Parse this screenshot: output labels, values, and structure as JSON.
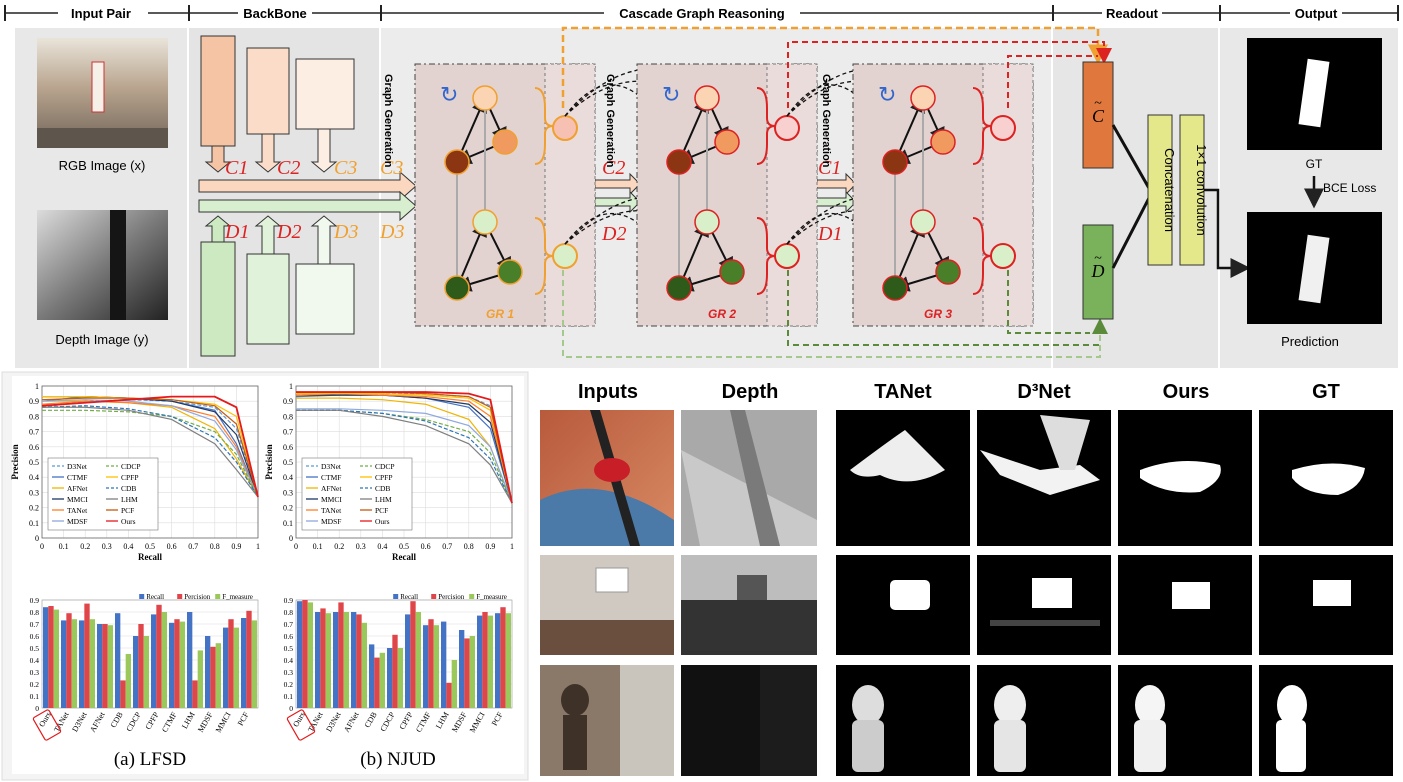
{
  "stages": [
    "Input Pair",
    "BackBone",
    "Cascade Graph Reasoning",
    "Readout",
    "Output"
  ],
  "inputs": {
    "rgb_caption": "RGB Image (x)",
    "depth_caption": "Depth Image (y)"
  },
  "backbone": {
    "c_labels": [
      "C1",
      "C2",
      "C3"
    ],
    "d_labels": [
      "D1",
      "D2",
      "D3"
    ]
  },
  "graph": {
    "generation_label": "Graph Generation",
    "gr_labels": [
      "GR 1",
      "GR 2",
      "GR 3"
    ],
    "flow_labels_top": [
      "C3",
      "C2",
      "C1"
    ],
    "flow_labels_bottom": [
      "D3",
      "D2",
      "D1"
    ]
  },
  "readout": {
    "c_tilde": "C",
    "d_tilde": "D",
    "concat": "Concatenation",
    "conv": "1×1 convolution"
  },
  "output": {
    "gt": "GT",
    "loss": "BCE Loss",
    "prediction": "Prediction"
  },
  "charts": {
    "pr_ticks_x": [
      "0",
      "0.1",
      "0.2",
      "0.3",
      "0.4",
      "0.5",
      "0.6",
      "0.7",
      "0.8",
      "0.9",
      "1"
    ],
    "pr_ticks_y": [
      "0",
      "0.1",
      "0.2",
      "0.3",
      "0.4",
      "0.5",
      "0.6",
      "0.7",
      "0.8",
      "0.9",
      "1"
    ],
    "bar_ticks_y": [
      "0",
      "0.1",
      "0.2",
      "0.3",
      "0.4",
      "0.5",
      "0.6",
      "0.7",
      "0.8",
      "0.9"
    ],
    "xlabel": "Recall",
    "ylabel": "Precision",
    "legend_left": [
      "D3Net",
      "CTMF",
      "AFNet",
      "MMCI",
      "TANet",
      "MDSF"
    ],
    "legend_right": [
      "CDCP",
      "CPFP",
      "CDB",
      "LHM",
      "PCF",
      "Ours"
    ],
    "bar_legend": [
      "Recall",
      "Percision",
      "F_measure"
    ],
    "captions": [
      "(a)  LFSD",
      "(b)  NJUD"
    ]
  },
  "comparison": {
    "headers": [
      "Inputs",
      "Depth",
      "TANet",
      "D³Net",
      "Ours",
      "GT"
    ]
  },
  "chart_data": [
    {
      "type": "line",
      "xlabel": "Recall",
      "ylabel": "Precision",
      "xlim": [
        0,
        1
      ],
      "ylim": [
        0,
        1
      ],
      "series": [
        {
          "name": "D3Net",
          "x": [
            0,
            0.2,
            0.4,
            0.6,
            0.8,
            0.9,
            1
          ],
          "y": [
            0.86,
            0.9,
            0.91,
            0.9,
            0.86,
            0.72,
            0.27
          ]
        },
        {
          "name": "CTMF",
          "x": [
            0,
            0.2,
            0.4,
            0.6,
            0.8,
            0.9,
            1
          ],
          "y": [
            0.9,
            0.93,
            0.92,
            0.9,
            0.84,
            0.62,
            0.27
          ]
        },
        {
          "name": "AFNet",
          "x": [
            0,
            0.2,
            0.4,
            0.6,
            0.8,
            0.9,
            1
          ],
          "y": [
            0.9,
            0.9,
            0.89,
            0.86,
            0.72,
            0.52,
            0.27
          ]
        },
        {
          "name": "MMCI",
          "x": [
            0,
            0.2,
            0.4,
            0.6,
            0.8,
            0.9,
            1
          ],
          "y": [
            0.93,
            0.93,
            0.92,
            0.9,
            0.83,
            0.68,
            0.27
          ]
        },
        {
          "name": "TANet",
          "x": [
            0,
            0.2,
            0.4,
            0.6,
            0.8,
            0.9,
            1
          ],
          "y": [
            0.88,
            0.9,
            0.89,
            0.87,
            0.8,
            0.6,
            0.27
          ]
        },
        {
          "name": "MDSF",
          "x": [
            0,
            0.2,
            0.4,
            0.6,
            0.8,
            0.9,
            1
          ],
          "y": [
            0.9,
            0.91,
            0.9,
            0.87,
            0.77,
            0.58,
            0.27
          ]
        },
        {
          "name": "CDCP",
          "x": [
            0,
            0.2,
            0.4,
            0.6,
            0.8,
            0.9,
            1
          ],
          "y": [
            0.84,
            0.84,
            0.83,
            0.8,
            0.7,
            0.55,
            0.27
          ]
        },
        {
          "name": "CPFP",
          "x": [
            0,
            0.2,
            0.4,
            0.6,
            0.8,
            0.9,
            1
          ],
          "y": [
            0.93,
            0.93,
            0.92,
            0.91,
            0.88,
            0.8,
            0.27
          ]
        },
        {
          "name": "CDB",
          "x": [
            0,
            0.2,
            0.4,
            0.6,
            0.8,
            0.9,
            1
          ],
          "y": [
            0.86,
            0.87,
            0.85,
            0.8,
            0.66,
            0.5,
            0.27
          ]
        },
        {
          "name": "LHM",
          "x": [
            0,
            0.2,
            0.4,
            0.6,
            0.8,
            0.9,
            1
          ],
          "y": [
            0.86,
            0.86,
            0.84,
            0.78,
            0.62,
            0.45,
            0.27
          ]
        },
        {
          "name": "PCF",
          "x": [
            0,
            0.2,
            0.4,
            0.6,
            0.8,
            0.9,
            1
          ],
          "y": [
            0.91,
            0.92,
            0.92,
            0.91,
            0.87,
            0.75,
            0.27
          ]
        },
        {
          "name": "Ours",
          "x": [
            0,
            0.2,
            0.4,
            0.6,
            0.8,
            0.9,
            1
          ],
          "y": [
            0.87,
            0.89,
            0.91,
            0.93,
            0.93,
            0.86,
            0.27
          ]
        }
      ]
    },
    {
      "type": "line",
      "xlabel": "Recall",
      "ylabel": "Precision",
      "xlim": [
        0,
        1
      ],
      "ylim": [
        0,
        1
      ],
      "series": [
        {
          "name": "D3Net",
          "x": [
            0,
            0.2,
            0.4,
            0.6,
            0.8,
            0.9,
            1
          ],
          "y": [
            0.95,
            0.95,
            0.95,
            0.95,
            0.93,
            0.87,
            0.23
          ]
        },
        {
          "name": "CTMF",
          "x": [
            0,
            0.2,
            0.4,
            0.6,
            0.8,
            0.9,
            1
          ],
          "y": [
            0.93,
            0.94,
            0.94,
            0.92,
            0.86,
            0.72,
            0.23
          ]
        },
        {
          "name": "AFNet",
          "x": [
            0,
            0.2,
            0.4,
            0.6,
            0.8,
            0.9,
            1
          ],
          "y": [
            0.92,
            0.92,
            0.91,
            0.88,
            0.78,
            0.6,
            0.23
          ]
        },
        {
          "name": "MMCI",
          "x": [
            0,
            0.2,
            0.4,
            0.6,
            0.8,
            0.9,
            1
          ],
          "y": [
            0.94,
            0.94,
            0.94,
            0.92,
            0.88,
            0.76,
            0.23
          ]
        },
        {
          "name": "TANet",
          "x": [
            0,
            0.2,
            0.4,
            0.6,
            0.8,
            0.9,
            1
          ],
          "y": [
            0.94,
            0.95,
            0.94,
            0.93,
            0.9,
            0.8,
            0.23
          ]
        },
        {
          "name": "MDSF",
          "x": [
            0,
            0.2,
            0.4,
            0.6,
            0.8,
            0.9,
            1
          ],
          "y": [
            0.85,
            0.85,
            0.84,
            0.82,
            0.74,
            0.6,
            0.23
          ]
        },
        {
          "name": "CDCP",
          "x": [
            0,
            0.2,
            0.4,
            0.6,
            0.8,
            0.9,
            1
          ],
          "y": [
            0.84,
            0.84,
            0.82,
            0.78,
            0.7,
            0.56,
            0.23
          ]
        },
        {
          "name": "CPFP",
          "x": [
            0,
            0.2,
            0.4,
            0.6,
            0.8,
            0.9,
            1
          ],
          "y": [
            0.95,
            0.95,
            0.95,
            0.94,
            0.92,
            0.84,
            0.23
          ]
        },
        {
          "name": "CDB",
          "x": [
            0,
            0.2,
            0.4,
            0.6,
            0.8,
            0.9,
            1
          ],
          "y": [
            0.84,
            0.84,
            0.82,
            0.77,
            0.66,
            0.52,
            0.23
          ]
        },
        {
          "name": "LHM",
          "x": [
            0,
            0.2,
            0.4,
            0.6,
            0.8,
            0.9,
            1
          ],
          "y": [
            0.84,
            0.84,
            0.8,
            0.74,
            0.62,
            0.48,
            0.23
          ]
        },
        {
          "name": "PCF",
          "x": [
            0,
            0.2,
            0.4,
            0.6,
            0.8,
            0.9,
            1
          ],
          "y": [
            0.96,
            0.96,
            0.96,
            0.95,
            0.93,
            0.86,
            0.23
          ]
        },
        {
          "name": "Ours",
          "x": [
            0,
            0.2,
            0.4,
            0.6,
            0.8,
            0.9,
            1
          ],
          "y": [
            0.96,
            0.96,
            0.96,
            0.96,
            0.95,
            0.91,
            0.23
          ]
        }
      ]
    },
    {
      "type": "bar",
      "ylim": [
        0,
        0.9
      ],
      "categories": [
        "Ours",
        "TANet",
        "D3Net",
        "AFNet",
        "CDB",
        "CDCP",
        "CPFP",
        "CTMF",
        "LHM",
        "MDSF",
        "MMCI",
        "PCF"
      ],
      "series": [
        {
          "name": "Recall",
          "values": [
            0.84,
            0.73,
            0.73,
            0.7,
            0.79,
            0.6,
            0.78,
            0.71,
            0.8,
            0.6,
            0.67,
            0.75
          ]
        },
        {
          "name": "Percision",
          "values": [
            0.85,
            0.79,
            0.87,
            0.7,
            0.23,
            0.7,
            0.86,
            0.74,
            0.23,
            0.51,
            0.74,
            0.81
          ]
        },
        {
          "name": "F_measure",
          "values": [
            0.82,
            0.74,
            0.74,
            0.69,
            0.45,
            0.6,
            0.8,
            0.72,
            0.48,
            0.54,
            0.67,
            0.73
          ]
        }
      ]
    },
    {
      "type": "bar",
      "ylim": [
        0,
        0.9
      ],
      "categories": [
        "Ours",
        "TANet",
        "D3Net",
        "AFNet",
        "CDB",
        "CDCP",
        "CPFP",
        "CTMF",
        "LHM",
        "MDSF",
        "MMCI",
        "PCF"
      ],
      "series": [
        {
          "name": "Recall",
          "values": [
            0.89,
            0.8,
            0.8,
            0.8,
            0.53,
            0.5,
            0.78,
            0.69,
            0.72,
            0.65,
            0.77,
            0.79
          ]
        },
        {
          "name": "Percision",
          "values": [
            0.9,
            0.83,
            0.88,
            0.78,
            0.42,
            0.61,
            0.89,
            0.74,
            0.21,
            0.58,
            0.8,
            0.84
          ]
        },
        {
          "name": "F_measure",
          "values": [
            0.88,
            0.79,
            0.8,
            0.71,
            0.46,
            0.5,
            0.8,
            0.69,
            0.4,
            0.6,
            0.77,
            0.79
          ]
        }
      ]
    }
  ]
}
